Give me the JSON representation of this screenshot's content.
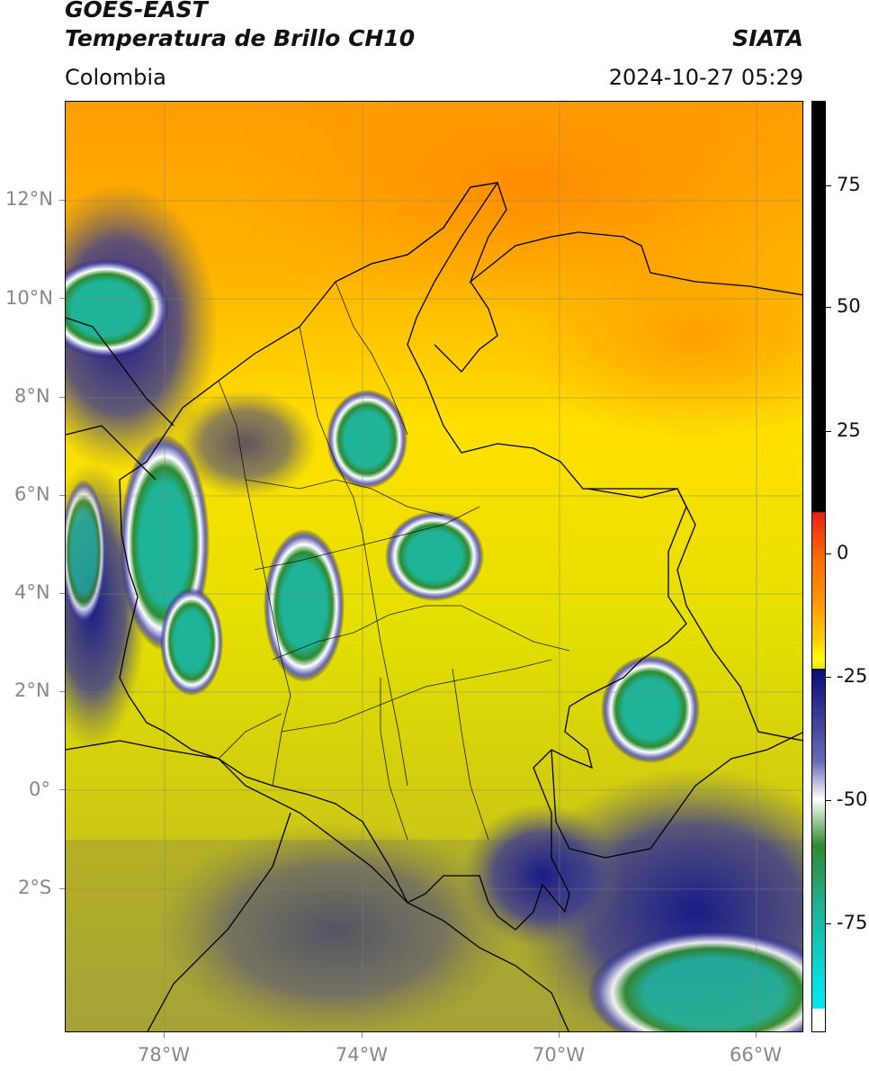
{
  "header": {
    "satellite": "GOES-EAST",
    "product": "Temperatura de Brillo CH10",
    "org": "SIATA",
    "region": "Colombia",
    "datetime": "2024-10-27 05:29"
  },
  "axes": {
    "lon_labels": [
      "78°W",
      "74°W",
      "70°W",
      "66°W"
    ],
    "lat_labels": [
      "12°N",
      "10°N",
      "8°N",
      "6°N",
      "4°N",
      "2°N",
      "0°",
      "2°S"
    ]
  },
  "colorbar": {
    "tick_labels": [
      "75",
      "50",
      "25",
      "0",
      "-25",
      "-50",
      "-75"
    ],
    "colors": {
      "black": "#000000",
      "red": "#e8201a",
      "orange": "#ff9a00",
      "yellow": "#ffff00",
      "olive": "#b7b42a",
      "navy": "#0a0a7a",
      "white": "#ffffff",
      "green": "#2e8b2e",
      "teal": "#1fb39a",
      "cyan": "#00e5ee"
    }
  }
}
